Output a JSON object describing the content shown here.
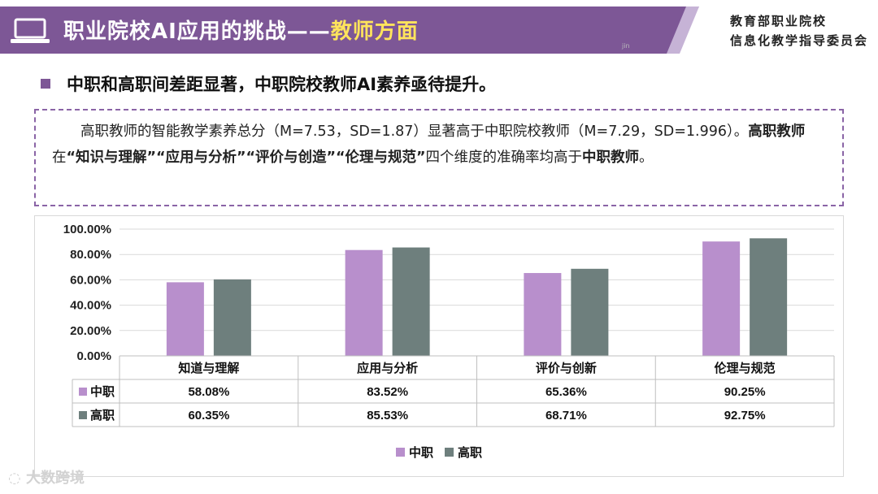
{
  "header": {
    "title_main": "职业院校AI应用的挑战——",
    "title_highlight": "教师方面",
    "org_line1": "教育部职业院校",
    "org_line2": "信息化教学指导委员会",
    "stamp": "jin"
  },
  "bullet": {
    "text": "中职和高职间差距显著，中职院校教师AI素养亟待提升。"
  },
  "summary": {
    "s1": "高职教师的智能教学素养总分（M=7.53，SD=1.87）显著高于中职院校教师（M=7.29，SD=1.996）。",
    "s2": "高职教师",
    "s3": "在",
    "s4": "“知识与理解”“应用与分析”“评价与创造”“伦理与规范”",
    "s5": "四个维度的准确率均高于",
    "s6": "中职教师",
    "s7": "。"
  },
  "watermark": "大数跨境",
  "chart_data": {
    "type": "bar",
    "categories": [
      "知道与理解",
      "应用与分析",
      "评价与创新",
      "伦理与规范"
    ],
    "series": [
      {
        "name": "中职",
        "values": [
          58.08,
          83.52,
          65.36,
          90.25
        ],
        "labels": [
          "58.08%",
          "83.52%",
          "65.36%",
          "90.25%"
        ],
        "color": "#b88fcc"
      },
      {
        "name": "高职",
        "values": [
          60.35,
          85.53,
          68.71,
          92.75
        ],
        "labels": [
          "60.35%",
          "85.53%",
          "68.71%",
          "92.75%"
        ],
        "color": "#6e7f7d"
      }
    ],
    "ylim": [
      0,
      100
    ],
    "yticks": [
      "0.00%",
      "20.00%",
      "40.00%",
      "60.00%",
      "80.00%",
      "100.00%"
    ],
    "grid": true,
    "data_table": true,
    "legend": "bottom-center"
  }
}
